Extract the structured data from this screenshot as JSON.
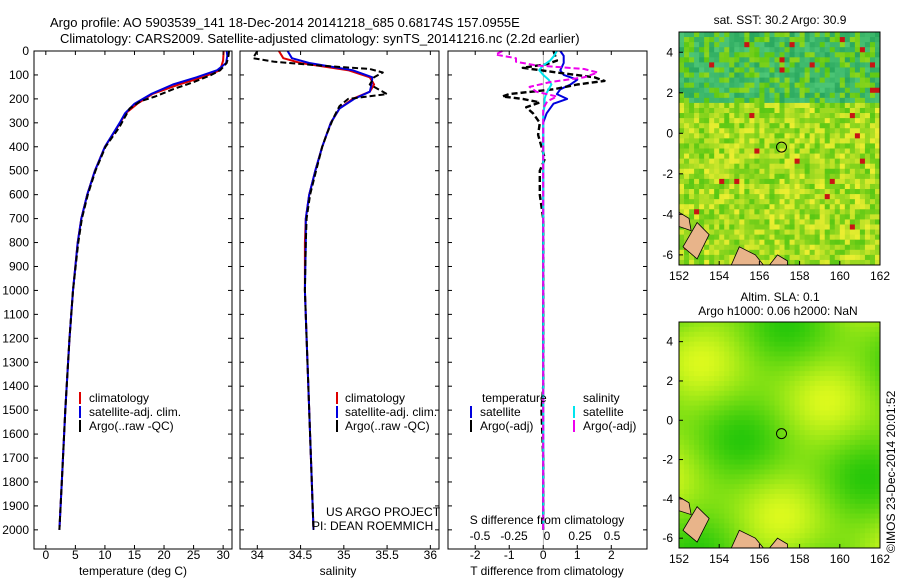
{
  "header": {
    "line1": "Argo profile: AO 5903539_141 18-Dec-2014 20141218_685 0.68174S 157.0955E",
    "line2": "Climatology: CARS2009. Satellite-adjusted climatology: synTS_20141216.nc (2.2d earlier)"
  },
  "colors": {
    "climatology": "#dd0000",
    "satellite": "#0000dd",
    "argo": "#000000",
    "sat_salinity": "#00e5ee",
    "argo_salinity": "#ee00ee"
  },
  "chart_data": [
    {
      "type": "line",
      "name": "temperature",
      "xlabel": "temperature (deg C)",
      "ylabel": "",
      "xlim": [
        -2,
        31.5
      ],
      "ylim": [
        0,
        2080
      ],
      "xticks": [
        0,
        5,
        10,
        15,
        20,
        25,
        30
      ],
      "yticks": [
        0,
        100,
        200,
        300,
        400,
        500,
        600,
        700,
        800,
        900,
        1000,
        1100,
        1200,
        1300,
        1400,
        1500,
        1600,
        1700,
        1800,
        1900,
        2000
      ],
      "legend": [
        "climatology",
        "satellite-adj. clim.",
        "Argo(..raw -QC)"
      ],
      "series": [
        {
          "name": "climatology",
          "depth": [
            0,
            40,
            80,
            110,
            140,
            180,
            220,
            260,
            300,
            400,
            500,
            600,
            700,
            800,
            1000,
            1200,
            1500,
            1800,
            2000
          ],
          "values": [
            30.1,
            30.0,
            29.5,
            26.5,
            22.5,
            18.0,
            15.5,
            13.5,
            12.6,
            10.0,
            8.3,
            7.0,
            6.0,
            5.4,
            4.6,
            4.0,
            3.3,
            2.7,
            2.3
          ]
        },
        {
          "name": "satellite",
          "depth": [
            0,
            20,
            50,
            80,
            110,
            140,
            180,
            220,
            260,
            300,
            400,
            500,
            600,
            700,
            800,
            1000,
            1200,
            1500,
            1800,
            2000
          ],
          "values": [
            30.6,
            30.7,
            30.5,
            29.0,
            25.5,
            21.5,
            17.8,
            15.0,
            13.4,
            12.5,
            10.0,
            8.3,
            7.0,
            6.0,
            5.4,
            4.6,
            4.0,
            3.3,
            2.7,
            2.3
          ]
        },
        {
          "name": "argo",
          "depth": [
            0,
            20,
            50,
            80,
            100,
            130,
            160,
            190,
            210,
            240,
            280,
            320,
            400,
            500,
            600,
            700,
            800,
            1000,
            1200,
            1500,
            1800,
            2000
          ],
          "values": [
            31.0,
            30.9,
            30.6,
            29.5,
            28.0,
            25.0,
            21.5,
            18.5,
            16.0,
            14.2,
            13.3,
            12.4,
            10.1,
            8.4,
            7.1,
            6.1,
            5.5,
            4.6,
            4.0,
            3.3,
            2.7,
            2.3
          ]
        }
      ]
    },
    {
      "type": "line",
      "name": "salinity",
      "xlabel": "salinity",
      "xlim": [
        33.8,
        36.1
      ],
      "ylim": [
        0,
        2080
      ],
      "xticks": [
        34,
        34.5,
        35,
        35.5,
        36
      ],
      "legend": [
        "climatology",
        "satellite-adj. clim.",
        "Argo(..raw -QC)"
      ],
      "annotation": [
        "US ARGO PROJECT",
        "PI: DEAN ROEMMICH"
      ],
      "series": [
        {
          "name": "climatology",
          "depth": [
            0,
            30,
            50,
            80,
            110,
            140,
            170,
            200,
            240,
            300,
            400,
            500,
            600,
            700,
            800,
            1000,
            1200,
            1500,
            1800,
            2000
          ],
          "values": [
            34.25,
            34.3,
            34.5,
            35.05,
            35.3,
            35.35,
            35.3,
            35.1,
            34.95,
            34.85,
            34.75,
            34.67,
            34.6,
            34.56,
            34.55,
            34.55,
            34.57,
            34.6,
            34.63,
            34.65
          ]
        },
        {
          "name": "satellite",
          "depth": [
            0,
            30,
            50,
            80,
            110,
            140,
            170,
            200,
            240,
            300,
            400,
            500,
            600,
            700,
            800,
            1000,
            1200,
            1500,
            1800,
            2000
          ],
          "values": [
            34.35,
            34.4,
            34.6,
            35.1,
            35.33,
            35.32,
            35.3,
            35.12,
            34.95,
            34.85,
            34.75,
            34.67,
            34.6,
            34.56,
            34.56,
            34.55,
            34.57,
            34.6,
            34.63,
            34.65
          ]
        },
        {
          "name": "argo",
          "depth": [
            0,
            30,
            45,
            60,
            75,
            90,
            110,
            140,
            180,
            200,
            230,
            280,
            350,
            400,
            500,
            600,
            700,
            800,
            1000,
            1200,
            1500,
            1800,
            2000
          ],
          "values": [
            34.0,
            33.95,
            34.2,
            34.7,
            35.3,
            35.45,
            35.35,
            35.3,
            35.5,
            35.05,
            34.95,
            34.88,
            34.8,
            34.75,
            34.68,
            34.61,
            34.57,
            34.56,
            34.55,
            34.57,
            34.6,
            34.63,
            34.65
          ]
        }
      ]
    },
    {
      "type": "line",
      "name": "difference",
      "xlabel": "T difference from climatology",
      "xlabel_top": "S difference from climatology",
      "xlim": [
        -2.8,
        3.05
      ],
      "ylim": [
        0,
        2080
      ],
      "xticks": [
        -2,
        -1,
        0,
        1,
        2
      ],
      "s_ticks": [
        "-0.5",
        "-0.25",
        "0",
        "0.25",
        "0.5"
      ],
      "legend_temperature": {
        "title": "temperature",
        "items": [
          "satellite",
          "Argo(-adj)"
        ]
      },
      "legend_salinity": {
        "title": "salinity",
        "items": [
          "satellite",
          "Argo(-adj)"
        ]
      },
      "series": [
        {
          "name": "T satellite",
          "depth": [
            0,
            20,
            50,
            80,
            100,
            120,
            140,
            160,
            180,
            200,
            220,
            260,
            300,
            400,
            500,
            700,
            1000,
            1500,
            2000
          ],
          "values": [
            0.5,
            0.6,
            0.6,
            0.5,
            0.6,
            1.0,
            0.8,
            0.5,
            0.4,
            0.7,
            0.3,
            0.1,
            0.0,
            0.0,
            0.0,
            0.0,
            0.0,
            0.0,
            0.0
          ]
        },
        {
          "name": "T argo",
          "depth": [
            0,
            40,
            55,
            70,
            90,
            110,
            125,
            140,
            160,
            180,
            190,
            200,
            215,
            235,
            260,
            300,
            350,
            400,
            450,
            500,
            600,
            700,
            800,
            900,
            1000,
            1200,
            1400,
            1500,
            1700,
            1900,
            2000
          ],
          "values": [
            0.3,
            0.4,
            0.1,
            -0.6,
            0.4,
            1.5,
            1.8,
            1.0,
            0.3,
            -1.0,
            -1.2,
            -0.6,
            -0.1,
            -0.5,
            -0.3,
            -0.1,
            -0.15,
            -0.05,
            0.05,
            -0.1,
            -0.1,
            0.0,
            0.0,
            0.0,
            0.0,
            0.0,
            0.0,
            -0.05,
            0.0,
            0.0,
            0.0
          ]
        },
        {
          "name": "S satellite",
          "depth": [
            0,
            20,
            40,
            60,
            80,
            100,
            120,
            140,
            160,
            180,
            200,
            230,
            260,
            300,
            400,
            600,
            900,
            1200,
            1600,
            2000
          ],
          "values": [
            0.1,
            0.08,
            0.05,
            0.0,
            -0.03,
            0.0,
            0.04,
            0.06,
            0.04,
            0.02,
            0.01,
            0.01,
            0.0,
            0.0,
            0.0,
            0.0,
            0.0,
            0.0,
            0.0,
            0.0
          ]
        },
        {
          "name": "S argo",
          "depth": [
            0,
            15,
            30,
            45,
            60,
            75,
            90,
            110,
            130,
            150,
            170,
            190,
            210,
            240,
            300,
            400,
            700,
            1000,
            1500,
            2000
          ],
          "values": [
            -0.3,
            -0.35,
            -0.2,
            -0.2,
            -0.05,
            0.3,
            0.4,
            0.3,
            0.05,
            -0.1,
            -0.05,
            0.1,
            0.03,
            0.0,
            0.0,
            0.0,
            0.0,
            0.0,
            0.0,
            0.0
          ]
        }
      ]
    },
    {
      "type": "heatmap",
      "name": "sst_map",
      "title": "sat. SST: 30.2  Argo: 30.9",
      "xlim": [
        152,
        162
      ],
      "ylim": [
        -6.5,
        5
      ],
      "xticks": [
        152,
        154,
        156,
        158,
        160,
        162
      ],
      "yticks": [
        -6,
        -4,
        -2,
        0,
        2,
        4
      ],
      "marker": {
        "lon": 157.1,
        "lat": -0.68
      }
    },
    {
      "type": "heatmap",
      "name": "sla_map",
      "title": "Altim. SLA: 0.1",
      "subtitle": "Argo h1000: 0.06 h2000: NaN",
      "xlim": [
        152,
        162
      ],
      "ylim": [
        -6.5,
        5
      ],
      "xticks": [
        152,
        154,
        156,
        158,
        160,
        162
      ],
      "yticks": [
        -6,
        -4,
        -2,
        0,
        2,
        4
      ],
      "marker": {
        "lon": 157.1,
        "lat": -0.68
      }
    }
  ],
  "footer": {
    "stamp": "©IMOS 23-Dec-2014 20:01:52"
  }
}
